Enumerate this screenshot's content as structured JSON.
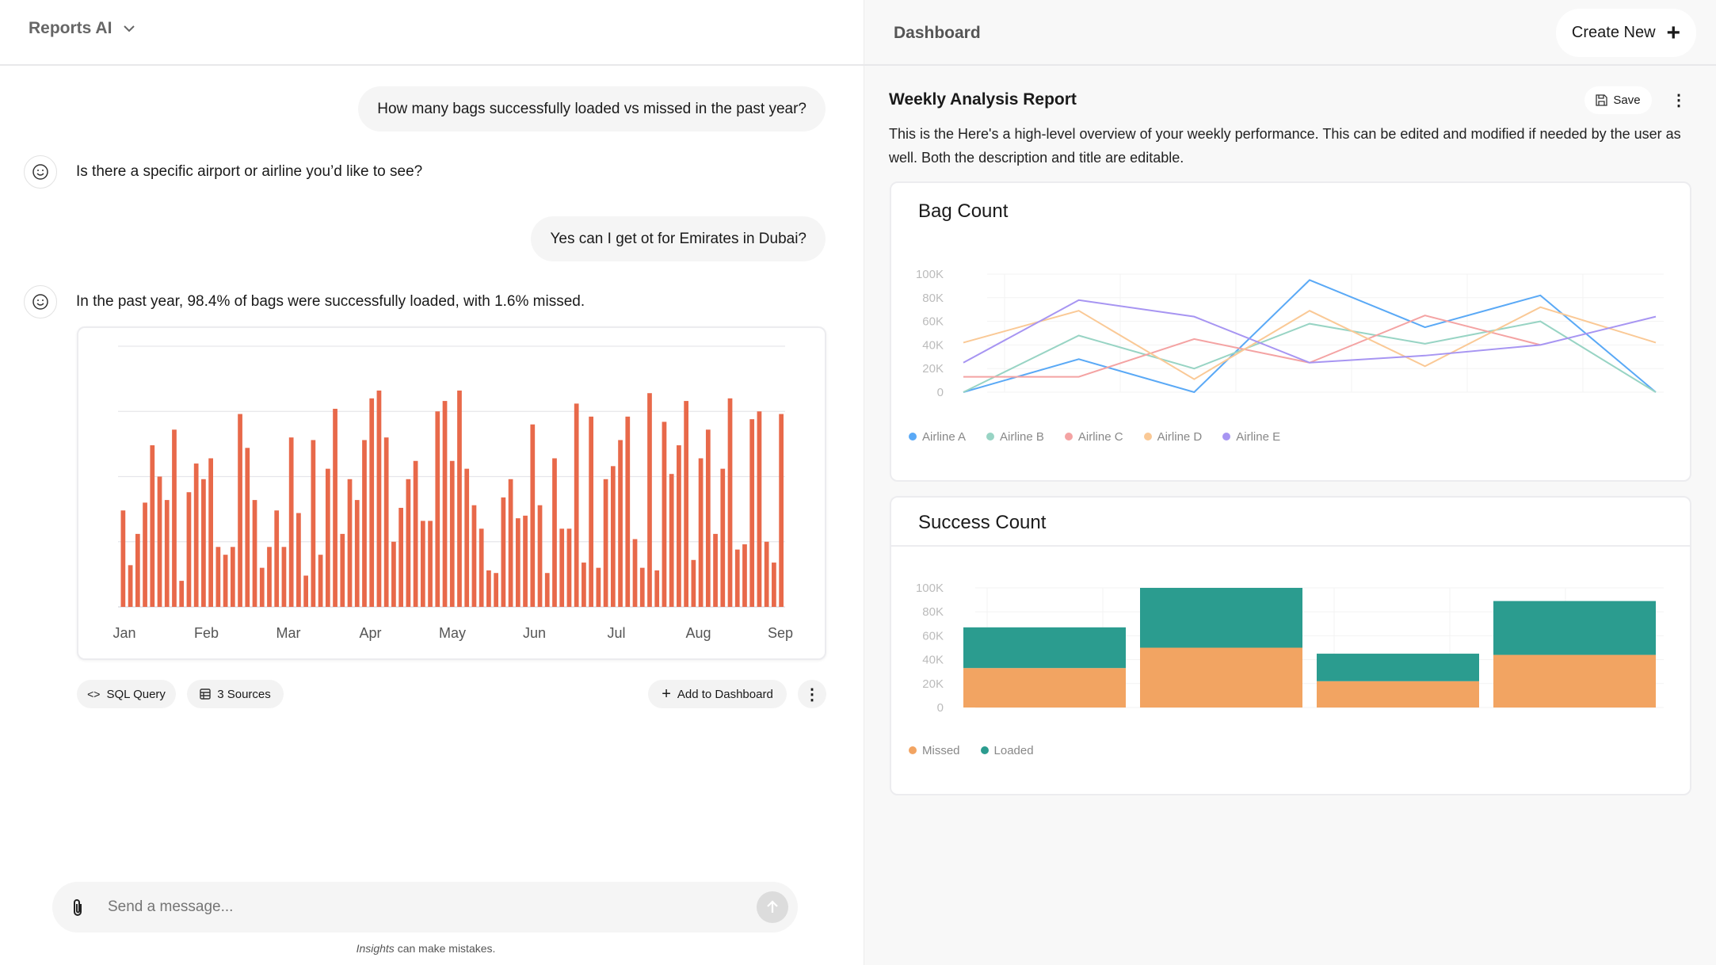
{
  "app": {
    "title": "Reports AI"
  },
  "chat": {
    "messages": [
      {
        "role": "user",
        "text": "How many bags successfully loaded vs missed in the past year?"
      },
      {
        "role": "bot",
        "text": "Is there a specific airport or airline you’d like to see?"
      },
      {
        "role": "user",
        "text": "Yes can I get ot for Emirates in Dubai?"
      },
      {
        "role": "bot",
        "text": "In the past year, 98.4% of bags were successfully loaded, with 1.6% missed."
      }
    ],
    "actions": {
      "sql": "SQL Query",
      "sources": "3 Sources",
      "add": "Add to Dashboard"
    },
    "input_placeholder": "Send a message...",
    "footer_brand": "Insights",
    "footer_text": " can make mistakes."
  },
  "dashboard": {
    "title": "Dashboard",
    "create_new": "Create New",
    "report_title": "Weekly Analysis Report",
    "save": "Save",
    "description": "This is the Here's a high-level overview of your weekly performance. This can be edited and modified if needed by the user as well. Both the description and title are editable."
  },
  "chart_data": [
    {
      "type": "bar",
      "title": "",
      "color": "#e8694a",
      "categories_label": "daily",
      "x_ticks": [
        "Jan",
        "Feb",
        "Mar",
        "Apr",
        "May",
        "Jun",
        "Jul",
        "Aug",
        "Sep"
      ],
      "ylim": [
        0,
        100
      ],
      "values": [
        37,
        16,
        28,
        40,
        62,
        50,
        41,
        68,
        10,
        44,
        55,
        49,
        57,
        23,
        20,
        23,
        74,
        61,
        41,
        15,
        23,
        37,
        23,
        65,
        36,
        12,
        64,
        20,
        53,
        76,
        28,
        49,
        41,
        64,
        80,
        83,
        65,
        25,
        38,
        49,
        56,
        33,
        33,
        75,
        79,
        56,
        83,
        53,
        39,
        30,
        14,
        13,
        42,
        49,
        34,
        35,
        70,
        39,
        13,
        57,
        30,
        30,
        78,
        17,
        73,
        15,
        49,
        54,
        64,
        73,
        26,
        15,
        82,
        14,
        71,
        51,
        62,
        79,
        18,
        57,
        68,
        28,
        53,
        80,
        22,
        24,
        72,
        75,
        25,
        17,
        74
      ]
    },
    {
      "type": "line",
      "title": "Bag Count",
      "y_ticks": [
        "0",
        "20K",
        "40K",
        "60K",
        "80K",
        "100K"
      ],
      "ylim": [
        0,
        100000
      ],
      "series": [
        {
          "name": "Airline A",
          "color": "#5aa9f6",
          "values": [
            0,
            28000,
            0,
            95000,
            55000,
            82000,
            0
          ]
        },
        {
          "name": "Airline B",
          "color": "#98d4c4",
          "values": [
            0,
            48000,
            20000,
            58000,
            41000,
            60000,
            0
          ]
        },
        {
          "name": "Airline C",
          "color": "#f4a3a3",
          "values": [
            13000,
            13000,
            45000,
            25000,
            65000,
            40000,
            null
          ]
        },
        {
          "name": "Airline D",
          "color": "#fac996",
          "values": [
            42000,
            69000,
            11000,
            69000,
            22000,
            72000,
            42000
          ]
        },
        {
          "name": "Airline E",
          "color": "#a795f2",
          "values": [
            25000,
            78000,
            64000,
            25000,
            31000,
            40000,
            64000
          ]
        }
      ]
    },
    {
      "type": "bar",
      "stacked": true,
      "title": "Success Count",
      "y_ticks": [
        "0",
        "20K",
        "40K",
        "60K",
        "80K",
        "100K"
      ],
      "ylim": [
        0,
        100000
      ],
      "series": [
        {
          "name": "Missed",
          "color": "#f2a462",
          "values": [
            33000,
            50000,
            22000,
            44000
          ]
        },
        {
          "name": "Loaded",
          "color": "#2b9c8f",
          "values": [
            34000,
            50000,
            23000,
            45000
          ]
        }
      ]
    }
  ]
}
